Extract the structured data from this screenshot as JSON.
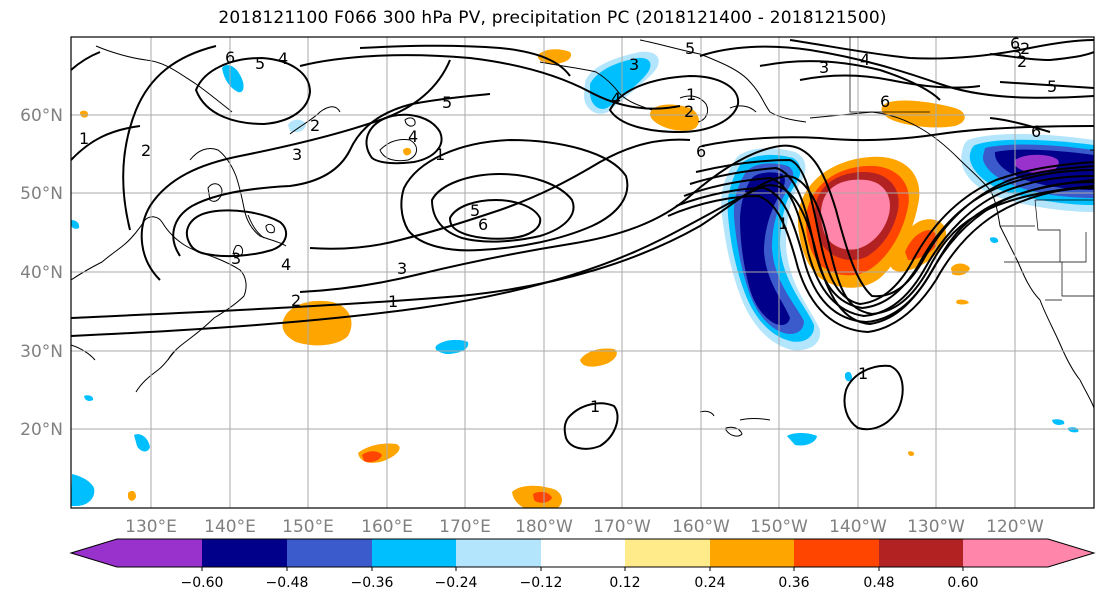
{
  "title": "2018121100 F066 300 hPa PV, precipitation PC (2018121400 - 2018121500)",
  "map": {
    "lat_labels": [
      "60°N",
      "50°N",
      "40°N",
      "30°N",
      "20°N"
    ],
    "lon_labels": [
      "130°E",
      "140°E",
      "150°E",
      "160°E",
      "170°E",
      "180°W",
      "170°W",
      "160°W",
      "150°W",
      "140°W",
      "130°W",
      "120°W"
    ],
    "contour_labels": [
      "1",
      "2",
      "3",
      "4",
      "5",
      "6",
      "1",
      "2",
      "3",
      "4",
      "5",
      "6",
      "1",
      "2",
      "3",
      "4",
      "5",
      "6",
      "1",
      "2",
      "3",
      "4",
      "5",
      "6",
      "1",
      "6",
      "2",
      "3",
      "4",
      "5",
      "6",
      "3",
      "2",
      "1",
      "1"
    ]
  },
  "colorbar": {
    "colors": [
      "#9932cc",
      "#00008b",
      "#3b5bcc",
      "#00bfff",
      "#b3e5fc",
      "#ffffff",
      "#ffeb8a",
      "#ffa500",
      "#ff4500",
      "#b22222",
      "#ff85aa"
    ],
    "tick_labels": [
      "-0.60",
      "-0.48",
      "-0.36",
      "-0.24",
      "-0.12",
      "0.12",
      "0.24",
      "0.36",
      "0.48",
      "0.60"
    ]
  }
}
